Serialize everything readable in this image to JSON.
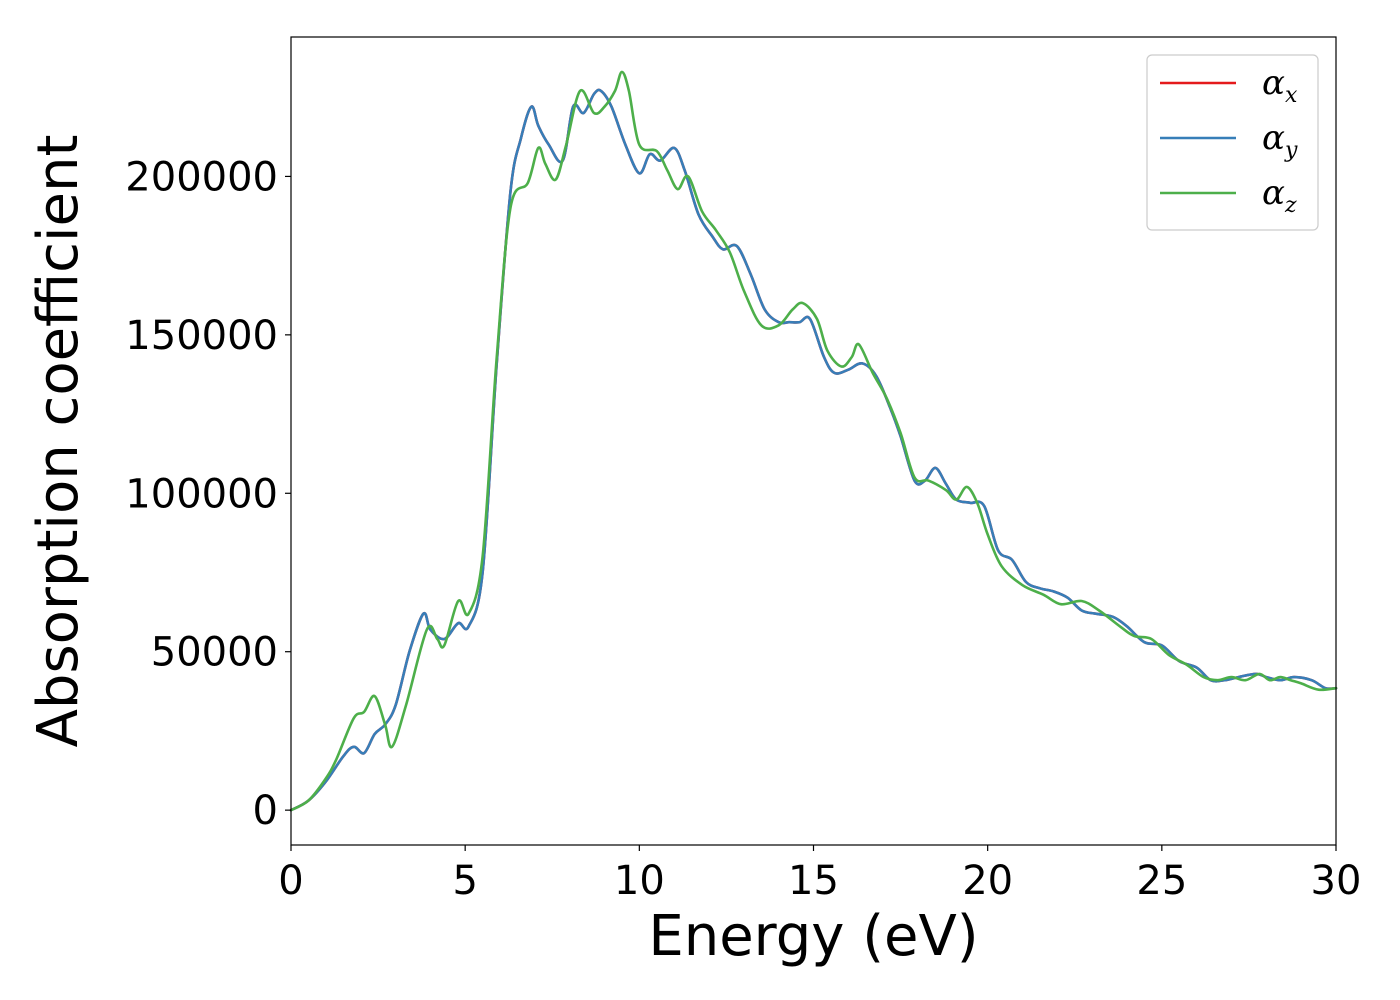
{
  "chart_data": {
    "type": "line",
    "title": "",
    "xlabel": "Energy (eV)",
    "ylabel": "Absorption coefficient",
    "xlim": [
      0,
      30
    ],
    "ylim": [
      -11000,
      244000
    ],
    "xticks": [
      0,
      5,
      10,
      15,
      20,
      25,
      30
    ],
    "xtick_labels": [
      "0",
      "5",
      "10",
      "15",
      "20",
      "25",
      "30"
    ],
    "yticks": [
      0,
      50000,
      100000,
      150000,
      200000
    ],
    "ytick_labels": [
      "0",
      "50000",
      "100000",
      "150000",
      "200000"
    ],
    "grid": false,
    "legend_position": "top-right",
    "series": [
      {
        "name": "α",
        "subscript": "x",
        "color": "#e41a1c",
        "x": [
          0,
          0.5,
          1.0,
          1.5,
          1.8,
          2.1,
          2.4,
          2.7,
          3.0,
          3.4,
          3.8,
          4.0,
          4.4,
          4.8,
          5.1,
          5.5,
          5.9,
          6.3,
          6.6,
          6.9,
          7.1,
          7.4,
          7.8,
          8.1,
          8.4,
          8.7,
          8.9,
          9.2,
          9.6,
          10.0,
          10.3,
          10.6,
          11.0,
          11.3,
          11.7,
          12.1,
          12.4,
          12.8,
          13.2,
          13.6,
          14.0,
          14.3,
          14.6,
          14.9,
          15.3,
          15.6,
          16.0,
          16.4,
          16.8,
          17.2,
          17.5,
          17.9,
          18.2,
          18.5,
          18.8,
          19.1,
          19.5,
          19.9,
          20.3,
          20.7,
          21.1,
          21.5,
          21.9,
          22.3,
          22.7,
          23.1,
          23.6,
          24.0,
          24.5,
          25.0,
          25.5,
          26.0,
          26.4,
          26.8,
          27.2,
          27.7,
          28.0,
          28.4,
          28.8,
          29.3,
          29.7,
          30.0
        ],
        "y": [
          0,
          3000,
          9000,
          17000,
          20000,
          18000,
          24000,
          27000,
          33000,
          50000,
          62000,
          57000,
          54000,
          59000,
          58000,
          75000,
          140000,
          195000,
          212000,
          222000,
          216000,
          210000,
          205000,
          222000,
          220000,
          226000,
          227000,
          222000,
          210000,
          201000,
          207000,
          205000,
          209000,
          202000,
          188000,
          181000,
          177000,
          178000,
          169000,
          158000,
          154000,
          154000,
          154000,
          155000,
          143000,
          138000,
          139000,
          141000,
          137000,
          127000,
          118000,
          104000,
          104000,
          108000,
          103000,
          98000,
          97000,
          96000,
          82000,
          79000,
          72000,
          70000,
          69000,
          67000,
          63000,
          62000,
          61000,
          58000,
          53000,
          52000,
          47000,
          45000,
          41000,
          41000,
          42000,
          43000,
          42000,
          41000,
          42000,
          41000,
          38500,
          38500
        ]
      },
      {
        "name": "α",
        "subscript": "y",
        "color": "#377eb8",
        "x": [
          0,
          0.5,
          1.0,
          1.5,
          1.8,
          2.1,
          2.4,
          2.7,
          3.0,
          3.4,
          3.8,
          4.0,
          4.4,
          4.8,
          5.1,
          5.5,
          5.9,
          6.3,
          6.6,
          6.9,
          7.1,
          7.4,
          7.8,
          8.1,
          8.4,
          8.7,
          8.9,
          9.2,
          9.6,
          10.0,
          10.3,
          10.6,
          11.0,
          11.3,
          11.7,
          12.1,
          12.4,
          12.8,
          13.2,
          13.6,
          14.0,
          14.3,
          14.6,
          14.9,
          15.3,
          15.6,
          16.0,
          16.4,
          16.8,
          17.2,
          17.5,
          17.9,
          18.2,
          18.5,
          18.8,
          19.1,
          19.5,
          19.9,
          20.3,
          20.7,
          21.1,
          21.5,
          21.9,
          22.3,
          22.7,
          23.1,
          23.6,
          24.0,
          24.5,
          25.0,
          25.5,
          26.0,
          26.4,
          26.8,
          27.2,
          27.7,
          28.0,
          28.4,
          28.8,
          29.3,
          29.7,
          30.0
        ],
        "y": [
          0,
          3000,
          9000,
          17000,
          20000,
          18000,
          24000,
          27000,
          33000,
          50000,
          62000,
          57000,
          54000,
          59000,
          58000,
          75000,
          140000,
          195000,
          212000,
          222000,
          216000,
          210000,
          205000,
          222000,
          220000,
          226000,
          227000,
          222000,
          210000,
          201000,
          207000,
          205000,
          209000,
          202000,
          188000,
          181000,
          177000,
          178000,
          169000,
          158000,
          154000,
          154000,
          154000,
          155000,
          143000,
          138000,
          139000,
          141000,
          137000,
          127000,
          118000,
          104000,
          104000,
          108000,
          103000,
          98000,
          97000,
          96000,
          82000,
          79000,
          72000,
          70000,
          69000,
          67000,
          63000,
          62000,
          61000,
          58000,
          53000,
          52000,
          47000,
          45000,
          41000,
          41000,
          42000,
          43000,
          42000,
          41000,
          42000,
          41000,
          38500,
          38500
        ]
      },
      {
        "name": "α",
        "subscript": "z",
        "color": "#4daf4a",
        "x": [
          0,
          0.5,
          1.0,
          1.3,
          1.8,
          2.1,
          2.4,
          2.7,
          2.9,
          3.3,
          3.9,
          4.2,
          4.4,
          4.8,
          5.1,
          5.5,
          5.9,
          6.3,
          6.8,
          7.1,
          7.3,
          7.6,
          7.9,
          8.3,
          8.7,
          9.0,
          9.3,
          9.5,
          9.7,
          10.0,
          10.5,
          10.8,
          11.1,
          11.4,
          11.8,
          12.2,
          12.6,
          13.0,
          13.5,
          14.0,
          14.4,
          14.7,
          15.1,
          15.4,
          15.8,
          16.1,
          16.3,
          16.7,
          17.1,
          17.5,
          17.9,
          18.3,
          18.8,
          19.1,
          19.4,
          19.7,
          20.0,
          20.4,
          21.0,
          21.6,
          22.1,
          22.7,
          23.2,
          23.8,
          24.2,
          24.7,
          25.2,
          25.7,
          26.2,
          26.6,
          27.0,
          27.4,
          27.8,
          28.1,
          28.4,
          28.7,
          29.0,
          29.5,
          30.0
        ],
        "y": [
          0,
          3000,
          10000,
          16000,
          29000,
          31000,
          36000,
          27000,
          20000,
          33000,
          57000,
          54000,
          52000,
          66000,
          62000,
          80000,
          142000,
          190000,
          198000,
          209000,
          204000,
          199000,
          210000,
          227000,
          220000,
          222000,
          227000,
          233000,
          227000,
          210000,
          208000,
          202000,
          196000,
          200000,
          189000,
          183000,
          176000,
          164000,
          153000,
          153000,
          158000,
          160000,
          155000,
          145000,
          140000,
          143000,
          147000,
          138000,
          130000,
          119000,
          105000,
          104000,
          101000,
          98000,
          102000,
          97000,
          87000,
          77000,
          71000,
          68000,
          65000,
          66000,
          63000,
          58000,
          55000,
          54000,
          49000,
          46000,
          42000,
          41000,
          42000,
          41000,
          43000,
          41000,
          42000,
          41000,
          40000,
          38000,
          38500
        ]
      }
    ]
  }
}
